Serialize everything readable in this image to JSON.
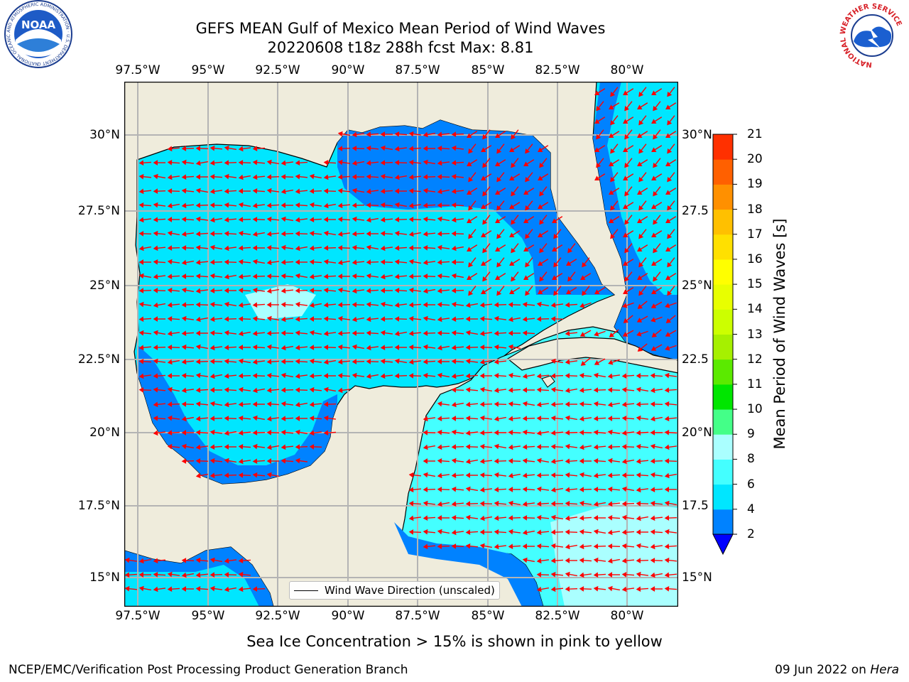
{
  "header": {
    "title_line1": "GEFS MEAN Gulf of Mexico Mean Period of Wind Waves",
    "title_line2": "20220608 t18z 288h fcst   Max: 8.81"
  },
  "logos": {
    "noaa": {
      "text": "NOAA",
      "ring_text": "NATIONAL OCEANIC AND ATMOSPHERIC ADMINISTRATION · U.S. DEPARTMENT OF COMMERCE"
    },
    "nws": {
      "ring_text": "NATIONAL WEATHER SERVICE"
    }
  },
  "map": {
    "longitude_ticks": [
      "97.5°W",
      "95°W",
      "92.5°W",
      "90°W",
      "87.5°W",
      "85°W",
      "82.5°W",
      "80°W"
    ],
    "latitude_ticks_left": [
      "30°N",
      "27.5°N",
      "25°N",
      "22.5°N",
      "20°N",
      "17.5°N",
      "15°N"
    ],
    "latitude_ticks_right": [
      "30°N",
      "27.5",
      "25°N",
      "22.5",
      "20°N",
      "17.5",
      "15°N"
    ],
    "colors": {
      "land": "#efecdc",
      "arrows": "#ff0000",
      "grid": "#b4b4b4",
      "coast": "#000000"
    },
    "legend_label": "Wind Wave Direction (unscaled)"
  },
  "colorbar": {
    "label": "Mean Period of Wind Waves [s]",
    "tick_labels": [
      "2",
      "4",
      "6",
      "8",
      "9",
      "10",
      "11",
      "12",
      "13",
      "14",
      "15",
      "16",
      "17",
      "18",
      "19",
      "20",
      "21"
    ],
    "underflow_color": "#0000ff",
    "colors": [
      "#0082ff",
      "#00e6ff",
      "#44ffff",
      "#aaffff",
      "#44ff88",
      "#00e600",
      "#5bea00",
      "#a6f000",
      "#ccff00",
      "#e8ff00",
      "#ffff00",
      "#ffe000",
      "#ffc000",
      "#ff9000",
      "#ff6000",
      "#ff3000",
      "#ff0000"
    ]
  },
  "note": "Sea Ice Concentration > 15% is shown in pink to yellow",
  "footer": {
    "left": "NCEP/EMC/Verification Post Processing Product Generation Branch",
    "date": "09 Jun 2022 on ",
    "machine": "Hera"
  }
}
